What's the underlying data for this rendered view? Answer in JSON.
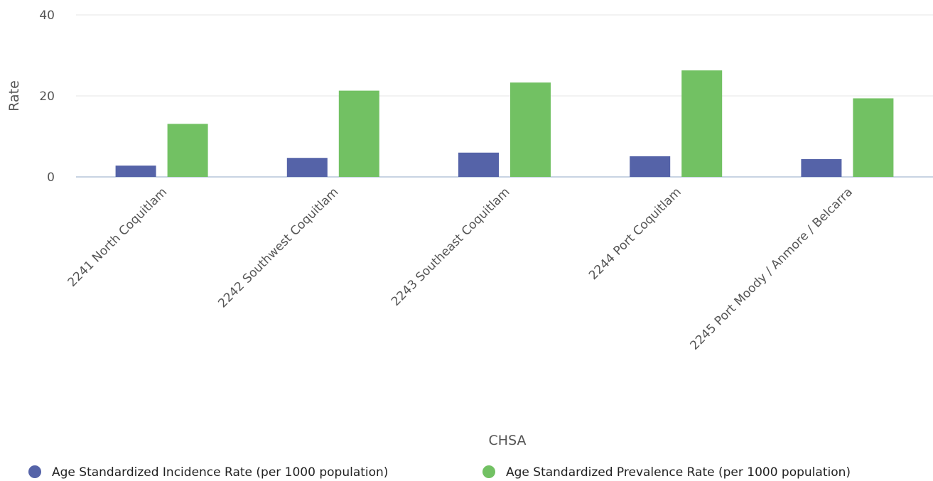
{
  "chart_data": {
    "type": "bar",
    "title": "",
    "xlabel": "CHSA",
    "ylabel": "Rate",
    "ylim": [
      0,
      40
    ],
    "yticks": [
      0,
      20,
      40
    ],
    "grid": true,
    "legend_position": "bottom",
    "categories": [
      "2241 North Coquitlam",
      "2242 Southwest Coquitlam",
      "2243 Southeast Coquitlam",
      "2244 Port Coquitlam",
      "2245 Port Moody / Anmore / Belcarra"
    ],
    "series": [
      {
        "name": "Age Standardized Incidence Rate (per 1000 population)",
        "color": "#5563a8",
        "values": [
          2.8,
          4.7,
          6.0,
          5.1,
          4.4
        ]
      },
      {
        "name": "Age Standardized Prevalence Rate (per 1000 population)",
        "color": "#72c163",
        "values": [
          13.1,
          21.3,
          23.3,
          26.3,
          19.4
        ]
      }
    ]
  }
}
